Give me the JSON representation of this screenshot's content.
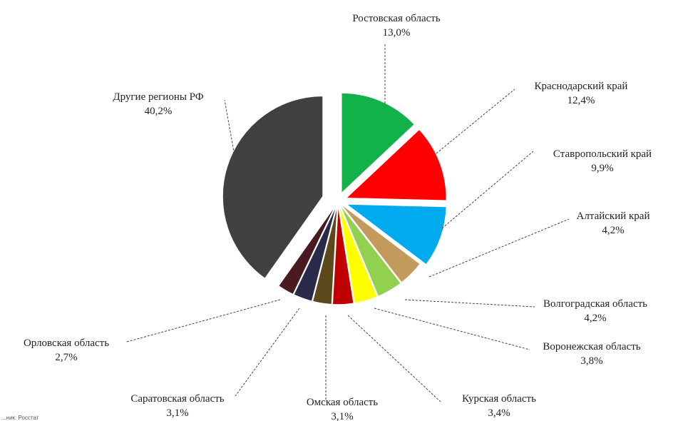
{
  "chart_data": {
    "type": "pie",
    "title": "",
    "slices": [
      {
        "label": "Ростовская область",
        "value_label": "13,0%",
        "value": 13.0,
        "color": "#12b24a"
      },
      {
        "label": "Краснодарский край",
        "value_label": "12,4%",
        "value": 12.4,
        "color": "#ff0000"
      },
      {
        "label": "Ставропольский край",
        "value_label": "9,9%",
        "value": 9.9,
        "color": "#00aaee"
      },
      {
        "label": "Алтайский край",
        "value_label": "4,2%",
        "value": 4.2,
        "color": "#c39a5c"
      },
      {
        "label": "Волгоградская область",
        "value_label": "4,2%",
        "value": 4.2,
        "color": "#92d050"
      },
      {
        "label": "Воронежская область",
        "value_label": "3,8%",
        "value": 3.8,
        "color": "#ffff00"
      },
      {
        "label": "Курская область",
        "value_label": "3,4%",
        "value": 3.4,
        "color": "#c00000"
      },
      {
        "label": "Омская область",
        "value_label": "3,1%",
        "value": 3.1,
        "color": "#5c4a1e"
      },
      {
        "label": "Саратовская область",
        "value_label": "3,1%",
        "value": 3.1,
        "color": "#2a2a4a"
      },
      {
        "label": "Орловская область",
        "value_label": "2,7%",
        "value": 2.7,
        "color": "#4a1a22"
      },
      {
        "label": "Другие регионы РФ",
        "value_label": "40,2%",
        "value": 40.2,
        "color": "#404040"
      }
    ],
    "legend": "none"
  },
  "source_note": "...ник: Росстат"
}
